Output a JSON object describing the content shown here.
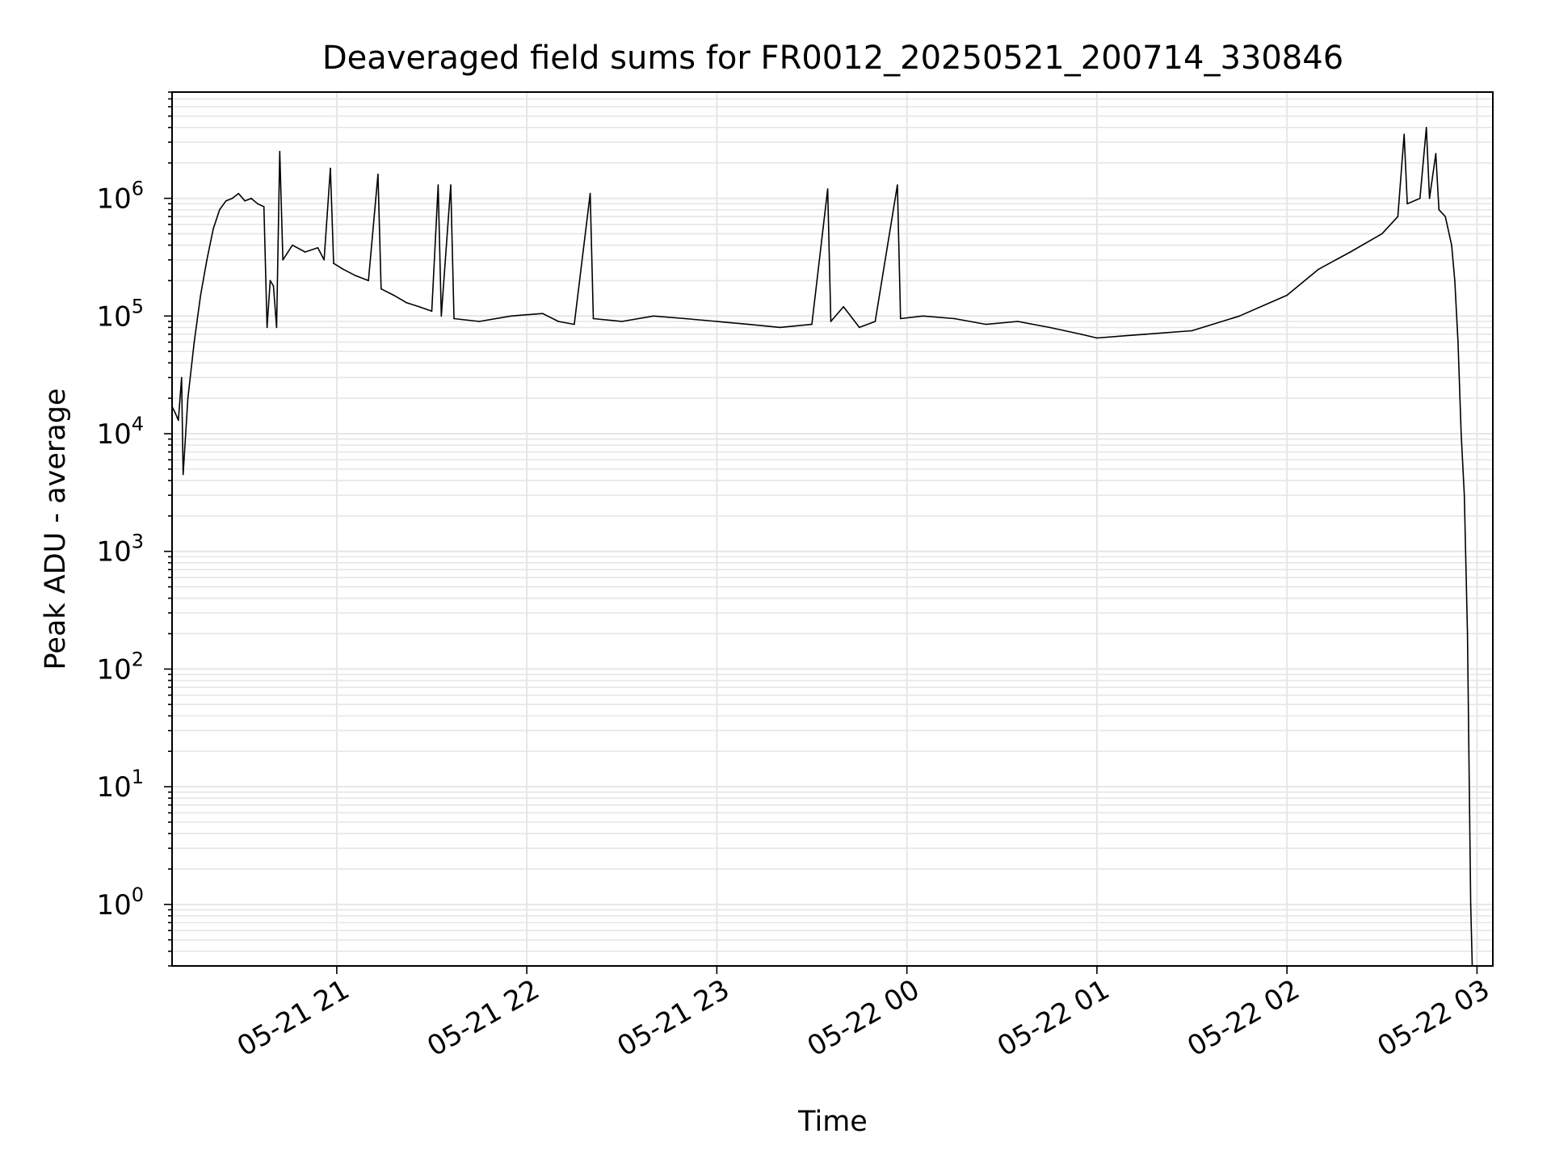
{
  "chart_data": {
    "type": "line",
    "title": "Deaveraged field sums for FR0012_20250521_200714_330846",
    "xlabel": "Time",
    "ylabel": "Peak ADU - average",
    "yscale": "log",
    "grid": true,
    "line_color": "#000000",
    "grid_color": "#e6e6e6",
    "xlim": [
      "2025-05-21 20:08",
      "2025-05-22 03:05"
    ],
    "ylim": [
      0.3,
      8000000
    ],
    "x_ticks": [
      {
        "t": "2025-05-21 21:00",
        "label": "05-21 21"
      },
      {
        "t": "2025-05-21 22:00",
        "label": "05-21 22"
      },
      {
        "t": "2025-05-21 23:00",
        "label": "05-21 23"
      },
      {
        "t": "2025-05-22 00:00",
        "label": "05-22 00"
      },
      {
        "t": "2025-05-22 01:00",
        "label": "05-22 01"
      },
      {
        "t": "2025-05-22 02:00",
        "label": "05-22 02"
      },
      {
        "t": "2025-05-22 03:00",
        "label": "05-22 03"
      }
    ],
    "y_ticks": [
      {
        "value": 1,
        "base": "10",
        "exp": "0"
      },
      {
        "value": 10,
        "base": "10",
        "exp": "1"
      },
      {
        "value": 100,
        "base": "10",
        "exp": "2"
      },
      {
        "value": 1000,
        "base": "10",
        "exp": "3"
      },
      {
        "value": 10000,
        "base": "10",
        "exp": "4"
      },
      {
        "value": 100000,
        "base": "10",
        "exp": "5"
      },
      {
        "value": 1000000,
        "base": "10",
        "exp": "6"
      }
    ],
    "series": [
      {
        "points": [
          [
            "2025-05-21 20:08",
            17000
          ],
          [
            "2025-05-21 20:09",
            15000
          ],
          [
            "2025-05-21 20:10",
            13000
          ],
          [
            "2025-05-21 20:11",
            30000
          ],
          [
            "2025-05-21 20:11:30",
            4500
          ],
          [
            "2025-05-21 20:13",
            20000
          ],
          [
            "2025-05-21 20:15",
            60000
          ],
          [
            "2025-05-21 20:17",
            150000
          ],
          [
            "2025-05-21 20:19",
            300000
          ],
          [
            "2025-05-21 20:21",
            550000
          ],
          [
            "2025-05-21 20:23",
            800000
          ],
          [
            "2025-05-21 20:25",
            950000
          ],
          [
            "2025-05-21 20:27",
            1000000
          ],
          [
            "2025-05-21 20:29",
            1100000
          ],
          [
            "2025-05-21 20:31",
            950000
          ],
          [
            "2025-05-21 20:33",
            1000000
          ],
          [
            "2025-05-21 20:35",
            900000
          ],
          [
            "2025-05-21 20:37",
            850000
          ],
          [
            "2025-05-21 20:38",
            80000
          ],
          [
            "2025-05-21 20:39",
            200000
          ],
          [
            "2025-05-21 20:40",
            180000
          ],
          [
            "2025-05-21 20:41",
            80000
          ],
          [
            "2025-05-21 20:42",
            2500000
          ],
          [
            "2025-05-21 20:43",
            300000
          ],
          [
            "2025-05-21 20:46",
            400000
          ],
          [
            "2025-05-21 20:50",
            350000
          ],
          [
            "2025-05-21 20:54",
            380000
          ],
          [
            "2025-05-21 20:56",
            300000
          ],
          [
            "2025-05-21 20:58",
            1800000
          ],
          [
            "2025-05-21 20:59",
            280000
          ],
          [
            "2025-05-21 21:02",
            250000
          ],
          [
            "2025-05-21 21:06",
            220000
          ],
          [
            "2025-05-21 21:10",
            200000
          ],
          [
            "2025-05-21 21:13",
            1600000
          ],
          [
            "2025-05-21 21:14",
            170000
          ],
          [
            "2025-05-21 21:18",
            150000
          ],
          [
            "2025-05-21 21:22",
            130000
          ],
          [
            "2025-05-21 21:26",
            120000
          ],
          [
            "2025-05-21 21:30",
            110000
          ],
          [
            "2025-05-21 21:32",
            1300000
          ],
          [
            "2025-05-21 21:33",
            100000
          ],
          [
            "2025-05-21 21:36",
            1300000
          ],
          [
            "2025-05-21 21:37",
            95000
          ],
          [
            "2025-05-21 21:45",
            90000
          ],
          [
            "2025-05-21 21:55",
            100000
          ],
          [
            "2025-05-21 22:05",
            105000
          ],
          [
            "2025-05-21 22:10",
            90000
          ],
          [
            "2025-05-21 22:15",
            85000
          ],
          [
            "2025-05-21 22:20",
            1100000
          ],
          [
            "2025-05-21 22:21",
            95000
          ],
          [
            "2025-05-21 22:30",
            90000
          ],
          [
            "2025-05-21 22:40",
            100000
          ],
          [
            "2025-05-21 22:50",
            95000
          ],
          [
            "2025-05-21 23:00",
            90000
          ],
          [
            "2025-05-21 23:10",
            85000
          ],
          [
            "2025-05-21 23:20",
            80000
          ],
          [
            "2025-05-21 23:30",
            85000
          ],
          [
            "2025-05-21 23:35",
            1200000
          ],
          [
            "2025-05-21 23:36",
            90000
          ],
          [
            "2025-05-21 23:40",
            120000
          ],
          [
            "2025-05-21 23:45",
            80000
          ],
          [
            "2025-05-21 23:50",
            90000
          ],
          [
            "2025-05-21 23:57",
            1300000
          ],
          [
            "2025-05-21 23:58",
            95000
          ],
          [
            "2025-05-22 00:05",
            100000
          ],
          [
            "2025-05-22 00:15",
            95000
          ],
          [
            "2025-05-22 00:25",
            85000
          ],
          [
            "2025-05-22 00:35",
            90000
          ],
          [
            "2025-05-22 00:45",
            80000
          ],
          [
            "2025-05-22 00:55",
            70000
          ],
          [
            "2025-05-22 01:00",
            65000
          ],
          [
            "2025-05-22 01:15",
            70000
          ],
          [
            "2025-05-22 01:30",
            75000
          ],
          [
            "2025-05-22 01:45",
            100000
          ],
          [
            "2025-05-22 02:00",
            150000
          ],
          [
            "2025-05-22 02:10",
            250000
          ],
          [
            "2025-05-22 02:20",
            350000
          ],
          [
            "2025-05-22 02:30",
            500000
          ],
          [
            "2025-05-22 02:35",
            700000
          ],
          [
            "2025-05-22 02:37",
            3500000
          ],
          [
            "2025-05-22 02:38",
            900000
          ],
          [
            "2025-05-22 02:42",
            1000000
          ],
          [
            "2025-05-22 02:44",
            4000000
          ],
          [
            "2025-05-22 02:45",
            1000000
          ],
          [
            "2025-05-22 02:47",
            2400000
          ],
          [
            "2025-05-22 02:48",
            800000
          ],
          [
            "2025-05-22 02:50",
            700000
          ],
          [
            "2025-05-22 02:52",
            400000
          ],
          [
            "2025-05-22 02:53",
            200000
          ],
          [
            "2025-05-22 02:54",
            60000
          ],
          [
            "2025-05-22 02:55",
            10000
          ],
          [
            "2025-05-22 02:56",
            3000
          ],
          [
            "2025-05-22 02:57",
            200
          ],
          [
            "2025-05-22 02:58",
            1
          ],
          [
            "2025-05-22 02:58:30",
            0.3
          ]
        ]
      }
    ]
  }
}
